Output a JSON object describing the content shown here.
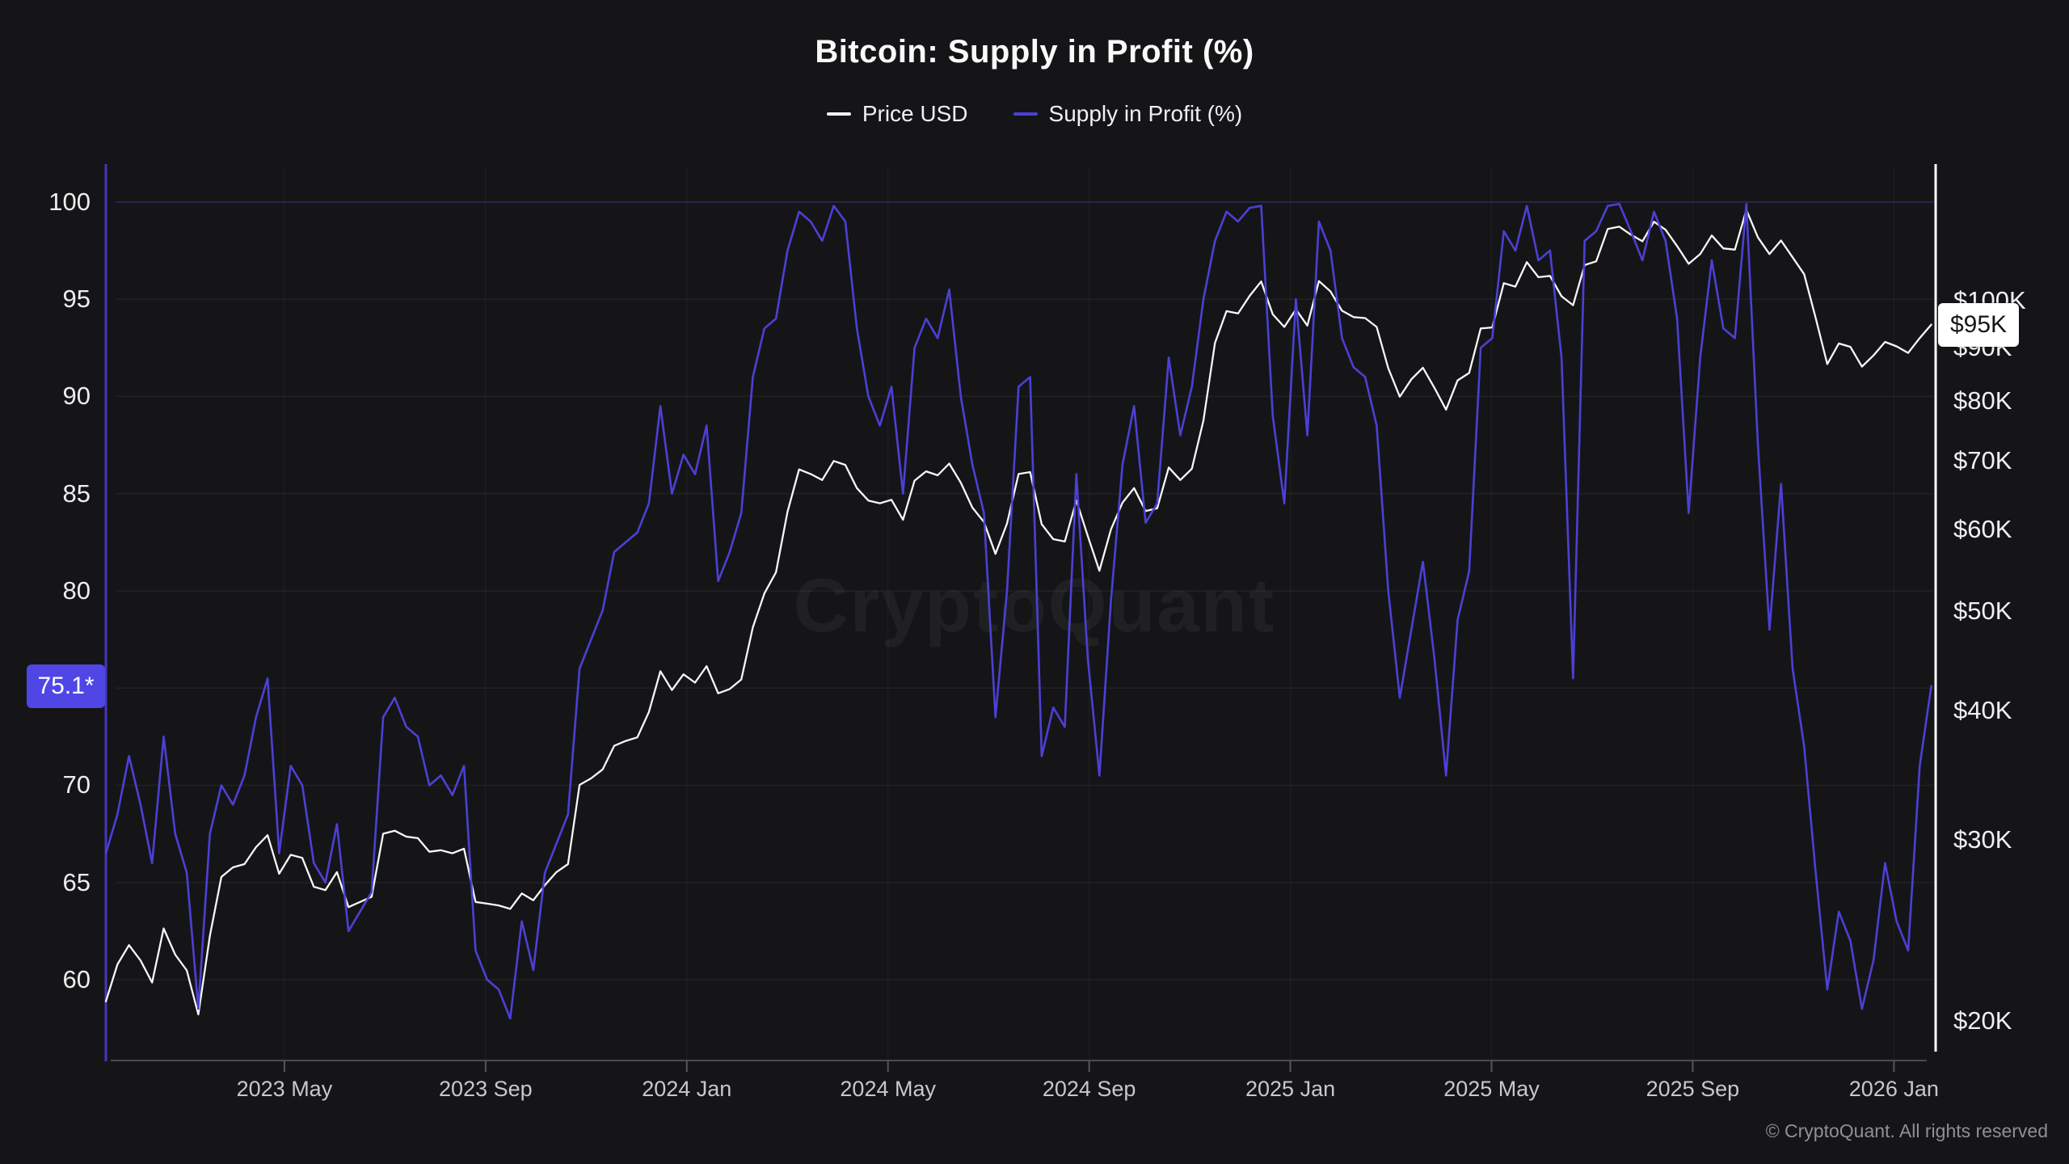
{
  "title": "Bitcoin: Supply in Profit (%)",
  "legend": {
    "items": [
      {
        "label": "Price USD",
        "color": "#f7f7f8"
      },
      {
        "label": "Supply in Profit (%)",
        "color": "#4c40d4"
      }
    ]
  },
  "watermark": "CryptoQuant",
  "footer": {
    "copyright": "© CryptoQuant. All rights reserved"
  },
  "badges": {
    "supply": {
      "label": "75.1*",
      "value": 75.1,
      "bg": "#4f46e5",
      "fg": "#ffffff"
    },
    "price": {
      "label": "$95K",
      "value": 94.8,
      "bg": "#ffffff",
      "fg": "#17171a"
    }
  },
  "chart_data": {
    "type": "line",
    "title": "Bitcoin: Supply in Profit (%)",
    "x_range_months_from_2023jan": [
      0.45,
      36.83
    ],
    "x_ticks": [
      {
        "month": 4,
        "label": "2023 May"
      },
      {
        "month": 8,
        "label": "2023 Sep"
      },
      {
        "month": 12,
        "label": "2024 Jan"
      },
      {
        "month": 16,
        "label": "2024 May"
      },
      {
        "month": 20,
        "label": "2024 Sep"
      },
      {
        "month": 24,
        "label": "2025 Jan"
      },
      {
        "month": 28,
        "label": "2025 May"
      },
      {
        "month": 32,
        "label": "2025 Sep"
      },
      {
        "month": 36,
        "label": "2026 Jan"
      }
    ],
    "left_axis": {
      "label": "Supply in Profit (%)",
      "ylim": [
        55.8,
        101.95
      ],
      "ticks": [
        100,
        95,
        90,
        85,
        80,
        70,
        65,
        60
      ],
      "grid_levels": [
        100,
        95,
        90,
        85,
        80,
        75,
        70,
        65,
        60
      ]
    },
    "right_axis": {
      "label": "Price USD",
      "scale": "log",
      "ylim_thousands_usd": [
        18.28,
        135.7
      ],
      "ticks": [
        {
          "value": 100,
          "label": "$100K"
        },
        {
          "value": 90,
          "label": "$90K"
        },
        {
          "value": 80,
          "label": "$80K"
        },
        {
          "value": 70,
          "label": "$70K"
        },
        {
          "value": 60,
          "label": "$60K"
        },
        {
          "value": 50,
          "label": "$50K"
        },
        {
          "value": 40,
          "label": "$40K"
        },
        {
          "value": 30,
          "label": "$30K"
        },
        {
          "value": 20,
          "label": "$20K"
        }
      ]
    },
    "series": [
      {
        "name": "Price USD",
        "axis": "right",
        "unit": "thousand USD",
        "color": "#f7f7f8",
        "width": 2.3,
        "start_month": 0.45,
        "step_month": 0.2297,
        "values": [
          20.9,
          22.7,
          23.7,
          22.9,
          21.8,
          24.6,
          23.2,
          22.4,
          20.3,
          24.2,
          27.6,
          28.2,
          28.4,
          29.5,
          30.3,
          27.8,
          29.0,
          28.8,
          27.0,
          26.8,
          27.9,
          25.8,
          26.1,
          26.4,
          30.4,
          30.6,
          30.2,
          30.1,
          29.2,
          29.3,
          29.1,
          29.4,
          26.1,
          26.0,
          25.9,
          25.7,
          26.6,
          26.2,
          27.1,
          27.9,
          28.4,
          33.9,
          34.4,
          35.1,
          37.0,
          37.4,
          37.7,
          39.9,
          43.7,
          41.9,
          43.4,
          42.6,
          44.2,
          41.6,
          42.0,
          42.9,
          48.2,
          52.0,
          54.5,
          62.4,
          68.6,
          67.9,
          67.0,
          69.9,
          69.3,
          65.8,
          64.0,
          63.6,
          64.1,
          61.3,
          66.9,
          68.3,
          67.7,
          69.5,
          66.6,
          63.0,
          61.0,
          56.8,
          60.8,
          67.9,
          68.2,
          60.7,
          58.7,
          58.4,
          64.0,
          59.1,
          54.7,
          60.0,
          63.7,
          65.8,
          62.5,
          62.9,
          68.9,
          67.0,
          68.7,
          76.5,
          91.0,
          97.7,
          97.2,
          101.1,
          104.4,
          97.0,
          94.3,
          98.1,
          94.6,
          104.5,
          102.1,
          97.8,
          96.4,
          96.2,
          94.3,
          86.0,
          80.7,
          83.9,
          86.1,
          82.3,
          78.4,
          83.7,
          85.1,
          94.0,
          94.2,
          104.0,
          103.2,
          109.0,
          105.4,
          105.7,
          101.0,
          99.0,
          108.3,
          109.2,
          117.4,
          118.0,
          115.9,
          114.2,
          119.3,
          117.2,
          113.0,
          108.6,
          111.0,
          115.7,
          112.4,
          112.1,
          122.5,
          115.2,
          111.0,
          114.4,
          110.2,
          106.1,
          96.2,
          86.8,
          90.9,
          90.2,
          86.3,
          88.5,
          91.2,
          90.3,
          89.0,
          92.0,
          94.8
        ]
      },
      {
        "name": "Supply in Profit (%)",
        "axis": "left",
        "unit": "percent",
        "color": "#4c40d4",
        "width": 2.6,
        "start_month": 0.45,
        "step_month": 0.2297,
        "values": [
          66.5,
          68.5,
          71.5,
          69.0,
          66.0,
          72.5,
          67.5,
          65.5,
          58.5,
          67.5,
          70.0,
          69.0,
          70.5,
          73.5,
          75.5,
          66.5,
          71.0,
          70.0,
          66.0,
          65.0,
          68.0,
          62.5,
          63.5,
          64.5,
          73.5,
          74.5,
          73.0,
          72.5,
          70.0,
          70.5,
          69.5,
          71.0,
          61.5,
          60.0,
          59.5,
          58.0,
          63.0,
          60.5,
          65.5,
          67.0,
          68.5,
          76.0,
          77.5,
          79.0,
          82.0,
          82.5,
          83.0,
          84.5,
          89.5,
          85.0,
          87.0,
          86.0,
          88.5,
          80.5,
          82.0,
          84.0,
          91.0,
          93.5,
          94.0,
          97.5,
          99.5,
          99.0,
          98.0,
          99.8,
          99.0,
          93.5,
          90.0,
          88.5,
          90.5,
          85.0,
          92.5,
          94.0,
          93.0,
          95.5,
          90.0,
          86.5,
          84.0,
          73.5,
          80.0,
          90.5,
          91.0,
          71.5,
          74.0,
          73.0,
          86.0,
          76.5,
          70.5,
          79.5,
          86.5,
          89.5,
          83.5,
          84.5,
          92.0,
          88.0,
          90.5,
          95.0,
          98.0,
          99.5,
          99.0,
          99.7,
          99.8,
          89.0,
          84.5,
          95.0,
          88.0,
          99.0,
          97.5,
          93.0,
          91.5,
          91.0,
          88.5,
          80.0,
          74.5,
          78.0,
          81.5,
          76.5,
          70.5,
          78.5,
          81.0,
          92.5,
          93.0,
          98.5,
          97.5,
          99.8,
          97.0,
          97.5,
          92.0,
          75.5,
          98.0,
          98.5,
          99.8,
          99.9,
          98.5,
          97.0,
          99.5,
          98.0,
          94.0,
          84.0,
          92.0,
          97.0,
          93.5,
          93.0,
          99.9,
          87.5,
          78.0,
          85.5,
          76.0,
          72.0,
          65.5,
          59.5,
          63.5,
          62.0,
          58.5,
          61.0,
          66.0,
          63.0,
          61.5,
          71.0,
          75.1
        ]
      }
    ],
    "grid": {
      "horizontal": true,
      "vertical_at_x_ticks": true
    },
    "legend_position": "top-center"
  }
}
